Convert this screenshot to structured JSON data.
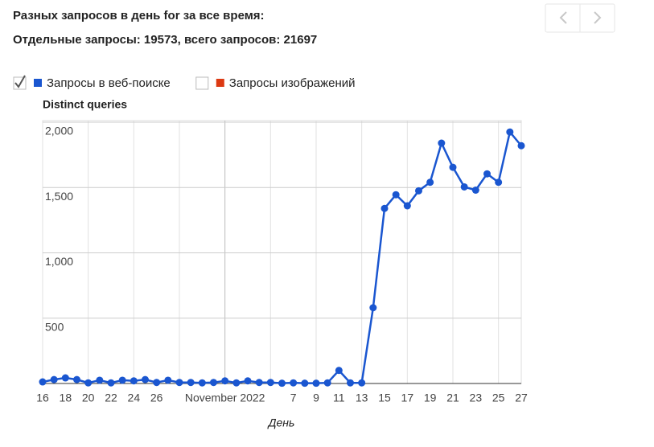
{
  "header": {
    "title": "Разных запросов в день for за все время:",
    "summary": "Отдельные запросы: 19573, всего запросов: 21697"
  },
  "chart_data": {
    "type": "line",
    "y_label": "Distinct queries",
    "x_label": "День",
    "legend": [
      {
        "name": "Запросы в веб-поиске",
        "color": "#1a56d0",
        "checked": true
      },
      {
        "name": "Запросы изображений",
        "color": "#dc3912",
        "checked": false
      }
    ],
    "categories": [
      "16",
      null,
      "18",
      null,
      "20",
      null,
      "22",
      null,
      "24",
      null,
      "26",
      null,
      null,
      null,
      null,
      null,
      "November 2022",
      null,
      null,
      null,
      null,
      null,
      "7",
      null,
      "9",
      null,
      "11",
      null,
      "13",
      null,
      "15",
      null,
      "17",
      null,
      "19",
      null,
      "21",
      null,
      "23",
      null,
      "25",
      null,
      "27"
    ],
    "series": [
      {
        "name": "Запросы в веб-поиске",
        "color": "#1a56d0",
        "values": [
          12,
          30,
          43,
          30,
          5,
          25,
          5,
          25,
          20,
          30,
          8,
          25,
          8,
          8,
          5,
          8,
          20,
          5,
          20,
          8,
          8,
          2,
          5,
          2,
          2,
          5,
          100,
          5,
          5,
          580,
          1340,
          1445,
          1360,
          1475,
          1540,
          1840,
          1655,
          1505,
          1480,
          1605,
          1540,
          1925,
          1820
        ]
      }
    ],
    "ylim": [
      0,
      2000
    ],
    "yticks": [
      {
        "value": 500,
        "label": "500"
      },
      {
        "value": 1000,
        "label": "1,000"
      },
      {
        "value": 1500,
        "label": "1,500"
      },
      {
        "value": 2000,
        "label": "2,000"
      }
    ],
    "grid": true
  }
}
